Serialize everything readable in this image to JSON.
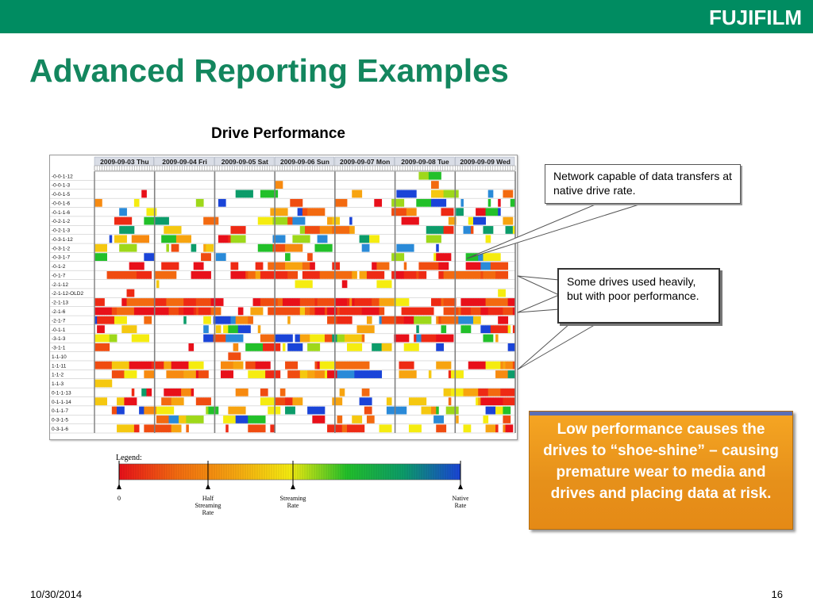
{
  "brand": "FUJIFILM",
  "slide_title": "Advanced Reporting Examples",
  "chart_data": {
    "type": "heatmap",
    "title": "Drive Performance",
    "days": [
      "2009-09-03 Thu",
      "2009-09-04 Fri",
      "2009-09-05 Sat",
      "2009-09-06 Sun",
      "2009-09-07 Mon",
      "2009-09-08 Tue",
      "2009-09-09 Wed"
    ],
    "drives": [
      "-0-0-1-12",
      "-0-0-1-3",
      "-0-0-1-5",
      "-0-0-1-6",
      "-0-1-1-6",
      "-0-2-1-2",
      "-0-2-1-3",
      "-0-3-1-12",
      "-0-3-1-2",
      "-0-3-1-7",
      "-0-1-2",
      "-0-1-7",
      "-2-1-12",
      "-2-1-12-OLD2",
      "-2-1-13",
      "-2-1-6",
      "-2-1-7",
      "-0-1-1",
      "-3-1-3",
      "-3-1-1",
      "1-1-10",
      "1-1-11",
      "1-1-2",
      "1-1-3",
      "0-1-1-13",
      "0-1-1-14",
      "0-1-1-7",
      "0-3-1-5",
      "0-3-1-6"
    ],
    "legend": {
      "title": "Legend:",
      "labels": [
        "0",
        "Half Streaming Rate",
        "Streaming Rate",
        "Native Rate"
      ],
      "colors": [
        "#e8101a",
        "#f36a10",
        "#f7a410",
        "#f5ec10",
        "#22c02a",
        "#0c9c6a",
        "#1a44d8"
      ]
    }
  },
  "callouts": {
    "network": "Network capable of data transfers at native drive rate.",
    "heavy": "Some drives used heavily, but with poor performance."
  },
  "highlight": "Low performance causes the drives to “shoe-shine” – causing premature wear to media and drives and placing data at risk.",
  "footer": {
    "date": "10/30/2014",
    "page": "16"
  }
}
